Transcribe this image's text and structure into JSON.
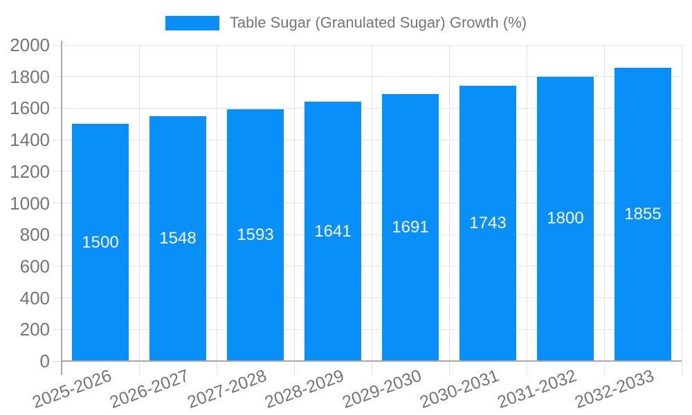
{
  "chart_data": {
    "type": "bar",
    "title": "Table Sugar (Granulated Sugar) Growth (%)",
    "categories": [
      "2025-2026",
      "2026-2027",
      "2027-2028",
      "2028-2029",
      "2029-2030",
      "2030-2031",
      "2031-2032",
      "2032-2033"
    ],
    "series": [
      {
        "name": "Table Sugar (Granulated Sugar) Growth (%)",
        "values": [
          1500,
          1548,
          1593,
          1641,
          1691,
          1743,
          1800,
          1855
        ]
      }
    ],
    "value_labels_shown": true,
    "xlabel": "",
    "ylabel": "",
    "ylim": [
      0,
      2000
    ],
    "yticks": [
      0,
      200,
      400,
      600,
      800,
      1000,
      1200,
      1400,
      1600,
      1800,
      2000
    ],
    "grid": true,
    "legend_position": "top",
    "x_tick_rotation_deg": -20,
    "colors": {
      "bar": "#0890f8",
      "value_label_text": "#ffffff",
      "tick_text": "#757575",
      "legend_text": "#757575",
      "grid_line": "#e3e3e3",
      "axis_line": "#a8a8a8"
    }
  }
}
